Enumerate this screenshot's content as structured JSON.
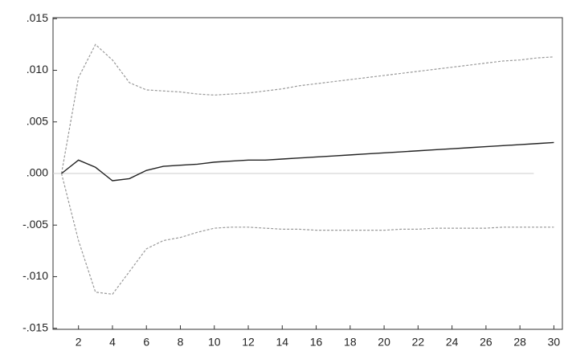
{
  "chart_data": {
    "type": "line",
    "x": [
      1,
      2,
      3,
      4,
      5,
      6,
      7,
      8,
      9,
      10,
      11,
      12,
      13,
      14,
      15,
      16,
      17,
      18,
      19,
      20,
      21,
      22,
      23,
      24,
      25,
      26,
      27,
      28,
      29,
      30
    ],
    "series": [
      {
        "color": "#999999",
        "dashed": true,
        "values": [
          0,
          0.0093,
          0.0125,
          0.011,
          0.0088,
          0.0081,
          0.008,
          0.0079,
          0.0077,
          0.0076,
          0.0077,
          0.0078,
          0.008,
          0.0082,
          0.0085,
          0.0087,
          0.0089,
          0.0091,
          0.0093,
          0.0095,
          0.0097,
          0.0099,
          0.0101,
          0.0103,
          0.0105,
          0.0107,
          0.0109,
          0.011,
          0.0112,
          0.0113
        ]
      },
      {
        "color": "#222222",
        "dashed": false,
        "values": [
          0,
          0.0013,
          0.0006,
          -0.0007,
          -0.0005,
          0.0003,
          0.0007,
          0.0008,
          0.0009,
          0.0011,
          0.0012,
          0.0013,
          0.0013,
          0.0014,
          0.0015,
          0.0016,
          0.0017,
          0.0018,
          0.0019,
          0.002,
          0.0021,
          0.0022,
          0.0023,
          0.0024,
          0.0025,
          0.0026,
          0.0027,
          0.0028,
          0.0029,
          0.003
        ]
      },
      {
        "color": "#999999",
        "dashed": true,
        "values": [
          0,
          -0.0065,
          -0.0115,
          -0.0117,
          -0.0095,
          -0.0073,
          -0.0065,
          -0.0062,
          -0.0057,
          -0.0053,
          -0.0052,
          -0.0052,
          -0.0053,
          -0.0054,
          -0.0054,
          -0.0055,
          -0.0055,
          -0.0055,
          -0.0055,
          -0.0055,
          -0.0054,
          -0.0054,
          -0.0053,
          -0.0053,
          -0.0053,
          -0.0053,
          -0.0052,
          -0.0052,
          -0.0052,
          -0.0052
        ]
      }
    ],
    "xlim": [
      0.5,
      30.5
    ],
    "xticks": [
      2,
      4,
      6,
      8,
      10,
      12,
      14,
      16,
      18,
      20,
      22,
      24,
      26,
      28,
      30
    ],
    "ylim": [
      -0.0151,
      0.0151
    ],
    "yticks": [
      {
        "value": 0.015,
        "label": ".015"
      },
      {
        "value": 0.01,
        "label": ".010"
      },
      {
        "value": 0.005,
        "label": ".005"
      },
      {
        "value": 0,
        "label": ".000"
      },
      {
        "value": -0.005,
        "label": "-.005"
      },
      {
        "value": -0.01,
        "label": "-.010"
      },
      {
        "value": -0.015,
        "label": "-.015"
      }
    ],
    "zero_line": true
  }
}
